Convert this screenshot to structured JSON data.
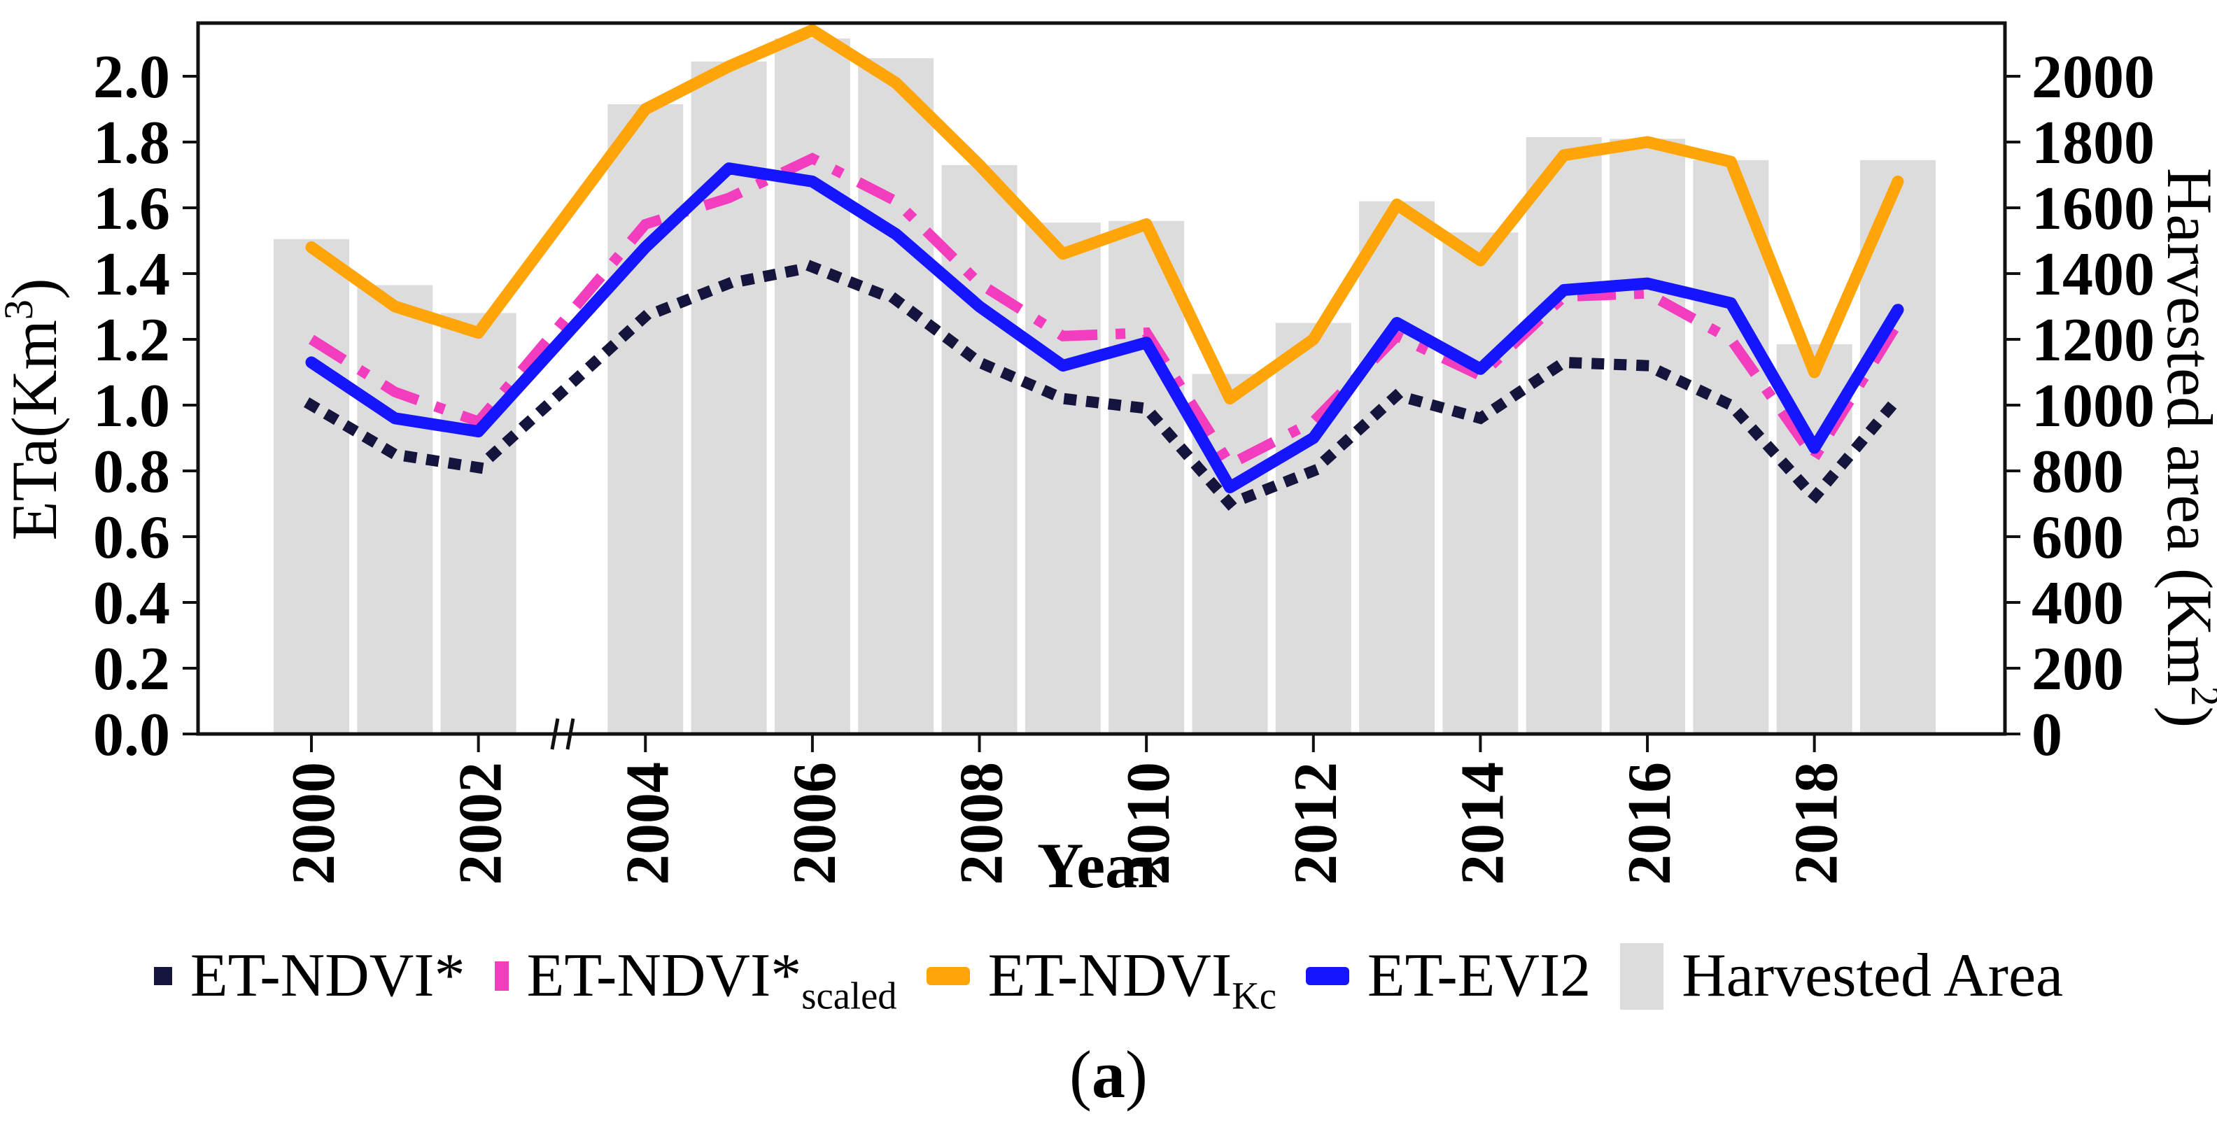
{
  "figure": {
    "caption_open": "(",
    "caption_letter": "a",
    "caption_close": ")"
  },
  "chart_data": {
    "type": "combo-bar-line",
    "title": "",
    "xlabel": "Year",
    "x_years": [
      2000,
      2001,
      2002,
      2003,
      2004,
      2005,
      2006,
      2007,
      2008,
      2009,
      2010,
      2011,
      2012,
      2013,
      2014,
      2015,
      2016,
      2017,
      2018,
      2019
    ],
    "x_tick_labels": [
      "2000",
      "2002",
      "2004",
      "2006",
      "2008",
      "2010",
      "2012",
      "2014",
      "2016",
      "2018"
    ],
    "axis_break_after_year": 2002,
    "y_left": {
      "label": "ETa(Km³)",
      "label_prefix": "ETa(Km",
      "label_sup": "3",
      "label_suffix": ")",
      "tick_labels": [
        "0.0",
        "0.2",
        "0.4",
        "0.6",
        "0.8",
        "1.0",
        "1.2",
        "1.4",
        "1.6",
        "1.8",
        "2.0"
      ],
      "ylim": [
        0,
        2.16
      ]
    },
    "y_right": {
      "label": "Harvested area (Km²)",
      "label_prefix": "Harvested area (Km",
      "label_sup": "2",
      "label_suffix": ")",
      "tick_labels": [
        "0",
        "200",
        "400",
        "600",
        "800",
        "1000",
        "1200",
        "1400",
        "1600",
        "1800",
        "2000"
      ],
      "ylim": [
        0,
        2160
      ]
    },
    "bars": {
      "name": "Harvested Area",
      "color": "#dcdcdc",
      "values_km2": [
        1505,
        1365,
        1280,
        null,
        1915,
        2045,
        2115,
        2055,
        1730,
        1555,
        1560,
        1095,
        1250,
        1620,
        1525,
        1815,
        1810,
        1745,
        1185,
        1745
      ]
    },
    "series": [
      {
        "name": "ET-NDVI*",
        "sub": "",
        "style": "dotted",
        "color": "#14143c",
        "values": [
          1.0,
          0.85,
          0.81,
          null,
          1.27,
          1.37,
          1.42,
          1.32,
          1.13,
          1.02,
          0.99,
          0.7,
          0.8,
          1.03,
          0.96,
          1.13,
          1.12,
          1.0,
          0.72,
          1.02
        ]
      },
      {
        "name": "ET-NDVI*",
        "sub": "scaled",
        "style": "dashdot",
        "color": "#f23ebe",
        "values": [
          1.2,
          1.04,
          0.95,
          null,
          1.55,
          1.63,
          1.75,
          1.62,
          1.37,
          1.21,
          1.22,
          0.82,
          0.95,
          1.21,
          1.09,
          1.33,
          1.34,
          1.2,
          0.84,
          1.25
        ]
      },
      {
        "name": "ET-NDVI",
        "sub": "Kc",
        "style": "solid",
        "color": "#ffa50a",
        "values": [
          1.48,
          1.3,
          1.22,
          null,
          1.9,
          2.03,
          2.14,
          1.98,
          1.73,
          1.46,
          1.55,
          1.02,
          1.2,
          1.61,
          1.44,
          1.76,
          1.8,
          1.74,
          1.1,
          1.68
        ]
      },
      {
        "name": "ET-EVI2",
        "sub": "",
        "style": "solid",
        "color": "#1515ff",
        "values": [
          1.13,
          0.96,
          0.92,
          null,
          1.48,
          1.72,
          1.68,
          1.52,
          1.3,
          1.12,
          1.19,
          0.75,
          0.9,
          1.25,
          1.11,
          1.35,
          1.37,
          1.31,
          0.87,
          1.29
        ]
      }
    ],
    "legend": [
      {
        "label": "ET-NDVI*",
        "sub": "",
        "marker": "dot-sample",
        "color": "#14143c"
      },
      {
        "label": "ET-NDVI*",
        "sub": "scaled",
        "marker": "dash-sample",
        "color": "#f23ebe"
      },
      {
        "label": "ET-NDVI",
        "sub": "Kc",
        "marker": "line-sample",
        "color": "#ffa50a"
      },
      {
        "label": "ET-EVI2",
        "sub": "",
        "marker": "line-sample",
        "color": "#1515ff"
      },
      {
        "label": "Harvested Area",
        "sub": "",
        "marker": "bar-sample",
        "color": "#dcdcdc"
      }
    ],
    "grid": false,
    "legend_position": "bottom"
  }
}
